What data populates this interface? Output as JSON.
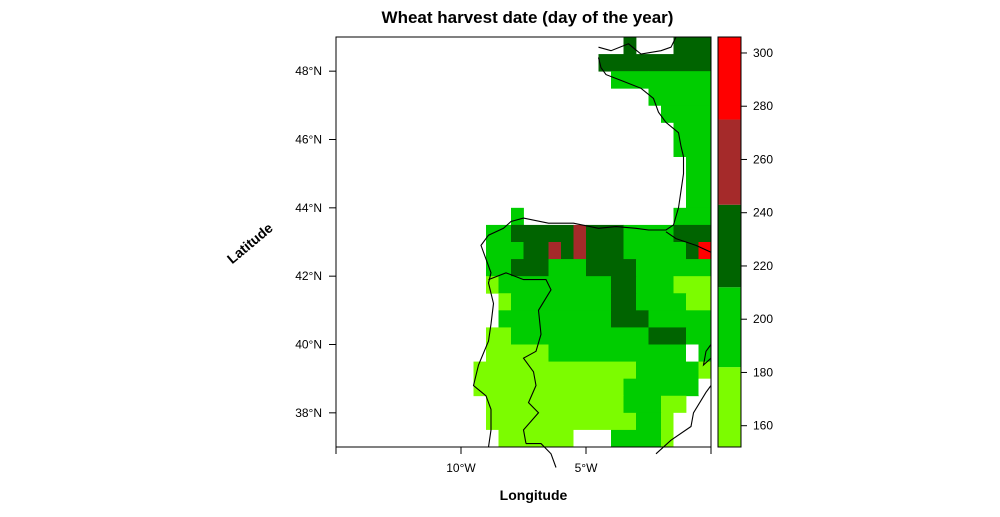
{
  "chart_data": {
    "type": "heatmap",
    "title": "Wheat harvest date (day of the year)",
    "xlabel": "Longitude",
    "ylabel": "Latitude",
    "xlim": [
      -15,
      0
    ],
    "ylim": [
      37,
      49
    ],
    "x_ticks": [
      {
        "value": -10,
        "label": "10°W"
      },
      {
        "value": -5,
        "label": "5°W"
      }
    ],
    "y_ticks": [
      {
        "value": 38,
        "label": "38°N"
      },
      {
        "value": 40,
        "label": "40°N"
      },
      {
        "value": 42,
        "label": "42°N"
      },
      {
        "value": 44,
        "label": "44°N"
      },
      {
        "value": 46,
        "label": "46°N"
      },
      {
        "value": 48,
        "label": "48°N"
      }
    ],
    "grid": false,
    "cell_size_deg": 0.5,
    "colorbar": {
      "placement": "right",
      "range": [
        152,
        306
      ],
      "bins": [
        {
          "from": 152,
          "to": 182,
          "color": "#7cfc00"
        },
        {
          "from": 182,
          "to": 212,
          "color": "#00cd00"
        },
        {
          "from": 212,
          "to": 243,
          "color": "#006400"
        },
        {
          "from": 243,
          "to": 275,
          "color": "#a52a2a"
        },
        {
          "from": 275,
          "to": 306,
          "color": "#ff0000"
        }
      ],
      "ticks": [
        160,
        180,
        200,
        220,
        240,
        260,
        280,
        300
      ]
    },
    "value_legend": {
      "165": "152–182",
      "200": "182–212",
      "230": "212–243",
      "260": "243–275",
      "290": "275–306"
    },
    "cell_rows": [
      {
        "lat": 48.75,
        "runs": [
          [
            -3.5,
            -3.0,
            230
          ],
          [
            -1.5,
            0,
            230
          ]
        ]
      },
      {
        "lat": 48.25,
        "runs": [
          [
            -4.5,
            -1.5,
            230
          ],
          [
            -1.5,
            0,
            230
          ]
        ]
      },
      {
        "lat": 47.75,
        "runs": [
          [
            -4.0,
            -2.5,
            200
          ],
          [
            -2.5,
            0,
            200
          ]
        ]
      },
      {
        "lat": 47.25,
        "runs": [
          [
            -2.5,
            0,
            200
          ]
        ]
      },
      {
        "lat": 46.75,
        "runs": [
          [
            -2.0,
            0,
            200
          ]
        ]
      },
      {
        "lat": 46.25,
        "runs": [
          [
            -1.5,
            0,
            200
          ]
        ]
      },
      {
        "lat": 45.75,
        "runs": [
          [
            -1.5,
            0,
            200
          ]
        ]
      },
      {
        "lat": 45.25,
        "runs": [
          [
            -1.0,
            0,
            200
          ]
        ]
      },
      {
        "lat": 44.75,
        "runs": [
          [
            -1.0,
            0,
            200
          ]
        ]
      },
      {
        "lat": 44.25,
        "runs": [
          [
            -1.0,
            0,
            200
          ]
        ]
      },
      {
        "lat": 43.75,
        "runs": [
          [
            -8.0,
            -7.5,
            200
          ],
          [
            -1.5,
            0,
            200
          ]
        ]
      },
      {
        "lat": 43.25,
        "runs": [
          [
            -9.0,
            -8.0,
            200
          ],
          [
            -8.0,
            -5.5,
            230
          ],
          [
            -5.5,
            -5.0,
            260
          ],
          [
            -5.0,
            -3.5,
            230
          ],
          [
            -3.5,
            -1.5,
            200
          ],
          [
            -1.5,
            0,
            230
          ]
        ]
      },
      {
        "lat": 42.75,
        "runs": [
          [
            -9.0,
            -7.5,
            200
          ],
          [
            -7.5,
            -6.5,
            230
          ],
          [
            -6.5,
            -6.0,
            260
          ],
          [
            -6.0,
            -5.5,
            230
          ],
          [
            -5.5,
            -5.0,
            260
          ],
          [
            -5.0,
            -3.5,
            230
          ],
          [
            -3.5,
            -2.5,
            200
          ],
          [
            -2.5,
            -1.0,
            200
          ],
          [
            -1.0,
            -0.5,
            230
          ],
          [
            -0.5,
            0,
            290
          ]
        ]
      },
      {
        "lat": 42.25,
        "runs": [
          [
            -9.0,
            -8.0,
            200
          ],
          [
            -8.0,
            -6.5,
            230
          ],
          [
            -6.5,
            -5.0,
            200
          ],
          [
            -5.0,
            -3.0,
            230
          ],
          [
            -3.0,
            0,
            200
          ]
        ]
      },
      {
        "lat": 41.75,
        "runs": [
          [
            -9.0,
            -8.5,
            165
          ],
          [
            -8.5,
            -4.0,
            200
          ],
          [
            -4.0,
            -3.0,
            230
          ],
          [
            -3.0,
            -1.5,
            200
          ],
          [
            -1.5,
            0,
            165
          ]
        ]
      },
      {
        "lat": 41.25,
        "runs": [
          [
            -8.5,
            -8.0,
            165
          ],
          [
            -8.0,
            -4.0,
            200
          ],
          [
            -4.0,
            -3.0,
            230
          ],
          [
            -3.0,
            -1.0,
            200
          ],
          [
            -1.0,
            0,
            165
          ]
        ]
      },
      {
        "lat": 40.75,
        "runs": [
          [
            -8.5,
            -4.0,
            200
          ],
          [
            -4.0,
            -2.5,
            230
          ],
          [
            -2.5,
            -1.0,
            200
          ],
          [
            -1.0,
            0,
            200
          ]
        ]
      },
      {
        "lat": 40.25,
        "runs": [
          [
            -9.0,
            -8.0,
            165
          ],
          [
            -8.0,
            -4.0,
            200
          ],
          [
            -4.0,
            -2.5,
            200
          ],
          [
            -2.5,
            -1.0,
            230
          ],
          [
            -1.0,
            0,
            200
          ]
        ]
      },
      {
        "lat": 39.75,
        "runs": [
          [
            -9.0,
            -6.5,
            165
          ],
          [
            -6.5,
            -3.0,
            200
          ],
          [
            -3.0,
            0,
            200
          ]
        ]
      },
      {
        "lat": 39.25,
        "runs": [
          [
            -9.5,
            -3.0,
            165
          ],
          [
            -3.0,
            -0.5,
            200
          ],
          [
            -0.5,
            0,
            165
          ]
        ]
      },
      {
        "lat": 38.75,
        "runs": [
          [
            -9.5,
            -3.5,
            165
          ],
          [
            -3.5,
            -0.5,
            200
          ]
        ]
      },
      {
        "lat": 38.25,
        "runs": [
          [
            -9.0,
            -3.5,
            165
          ],
          [
            -3.5,
            -2.0,
            200
          ],
          [
            -2.0,
            -1.0,
            165
          ]
        ]
      },
      {
        "lat": 37.75,
        "runs": [
          [
            -9.0,
            -3.0,
            165
          ],
          [
            -3.0,
            -2.0,
            200
          ],
          [
            -2.0,
            -1.0,
            165
          ]
        ]
      },
      {
        "lat": 37.25,
        "runs": [
          [
            -9.0,
            -8.5,
            165
          ],
          [
            -8.5,
            -5.5,
            165
          ],
          [
            -5.5,
            -4.0,
            165
          ],
          [
            -4.0,
            -2.0,
            200
          ],
          [
            -2.0,
            -1.5,
            165
          ]
        ]
      }
    ],
    "coastline": [
      [
        -4.5,
        48.7
      ],
      [
        -4.0,
        48.6
      ],
      [
        -3.3,
        48.8
      ],
      [
        -2.8,
        48.5
      ],
      [
        -2.0,
        48.6
      ],
      [
        -1.6,
        48.7
      ],
      [
        -1.4,
        49.0
      ],
      "break",
      [
        -4.5,
        48.4
      ],
      [
        -4.4,
        48.1
      ],
      [
        -4.2,
        47.9
      ],
      [
        -3.5,
        47.7
      ],
      [
        -2.8,
        47.5
      ],
      [
        -2.3,
        47.2
      ],
      [
        -2.1,
        46.8
      ],
      [
        -1.8,
        46.5
      ],
      [
        -1.3,
        46.2
      ],
      [
        -1.2,
        45.8
      ],
      [
        -1.1,
        45.5
      ],
      [
        -1.1,
        45.0
      ],
      [
        -1.2,
        44.5
      ],
      [
        -1.3,
        44.0
      ],
      [
        -1.5,
        43.5
      ],
      [
        -1.8,
        43.35
      ],
      [
        -2.5,
        43.35
      ],
      [
        -3.0,
        43.4
      ],
      [
        -3.8,
        43.45
      ],
      [
        -4.5,
        43.4
      ],
      [
        -5.5,
        43.55
      ],
      [
        -6.5,
        43.55
      ],
      [
        -7.5,
        43.7
      ],
      [
        -8.0,
        43.6
      ],
      [
        -8.3,
        43.4
      ],
      [
        -8.9,
        43.2
      ],
      [
        -9.2,
        42.9
      ],
      [
        -9.0,
        42.5
      ],
      [
        -8.8,
        42.1
      ],
      [
        -8.9,
        41.8
      ],
      [
        -8.7,
        41.2
      ],
      [
        -8.8,
        40.6
      ],
      [
        -8.9,
        40.1
      ],
      [
        -9.3,
        39.4
      ],
      [
        -9.5,
        38.8
      ],
      [
        -9.0,
        38.5
      ],
      [
        -8.8,
        38.1
      ],
      [
        -8.8,
        37.5
      ],
      [
        -8.9,
        37.0
      ],
      "break",
      [
        -7.4,
        37.1
      ],
      [
        -6.8,
        37.1
      ],
      [
        -6.4,
        36.8
      ],
      [
        -6.2,
        36.4
      ],
      "break",
      [
        -2.2,
        36.8
      ],
      [
        -1.6,
        37.2
      ],
      [
        -0.8,
        37.6
      ],
      [
        -0.7,
        38.0
      ],
      [
        -0.2,
        38.6
      ],
      [
        0.0,
        38.8
      ],
      "break",
      [
        0.0,
        39.6
      ],
      [
        -0.3,
        39.4
      ],
      [
        -0.2,
        39.8
      ],
      [
        0.0,
        40.0
      ],
      "break",
      [
        -1.8,
        43.3
      ],
      [
        -1.4,
        43.1
      ],
      [
        -0.6,
        42.9
      ],
      [
        0.0,
        42.7
      ],
      "break",
      [
        -8.9,
        41.9
      ],
      [
        -8.2,
        42.1
      ],
      [
        -7.5,
        41.9
      ],
      [
        -6.6,
        41.9
      ],
      [
        -6.4,
        41.6
      ],
      [
        -6.9,
        41.0
      ],
      [
        -6.8,
        40.3
      ],
      [
        -7.0,
        39.8
      ],
      [
        -7.5,
        39.6
      ],
      [
        -7.1,
        39.2
      ],
      [
        -7.0,
        38.8
      ],
      [
        -7.3,
        38.3
      ],
      [
        -6.9,
        38.0
      ],
      [
        -7.5,
        37.5
      ],
      [
        -7.4,
        37.1
      ]
    ],
    "mask_white": [
      [
        -9.0,
        37.0,
        -8.5,
        37.5
      ],
      [
        -5.5,
        37.0,
        -4.0,
        37.5
      ],
      [
        -1.5,
        37.0,
        0.0,
        38.0
      ],
      [
        -0.5,
        38.5,
        0.0,
        39.0
      ],
      [
        -1.0,
        39.5,
        -0.5,
        40.0
      ]
    ]
  }
}
